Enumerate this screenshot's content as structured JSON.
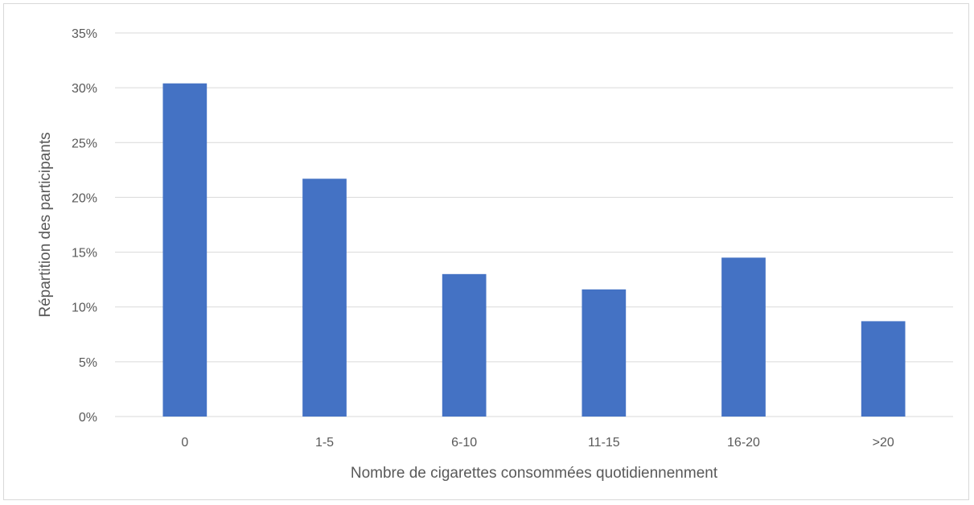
{
  "chart_data": {
    "type": "bar",
    "title": "",
    "xlabel": "Nombre de cigarettes consommées quotidiennenment",
    "ylabel": "Répartition des participants",
    "categories": [
      "0",
      "1-5",
      "6-10",
      "11-15",
      "16-20",
      ">20"
    ],
    "values": [
      30.4,
      21.7,
      13.0,
      11.6,
      14.5,
      8.7
    ],
    "ylim": [
      0,
      35
    ],
    "yticks": [
      "0%",
      "5%",
      "10%",
      "15%",
      "20%",
      "25%",
      "30%",
      "35%"
    ],
    "grid": true,
    "legend": "none",
    "bar_color": "#4472c4",
    "grid_color": "#d9d9d9"
  }
}
